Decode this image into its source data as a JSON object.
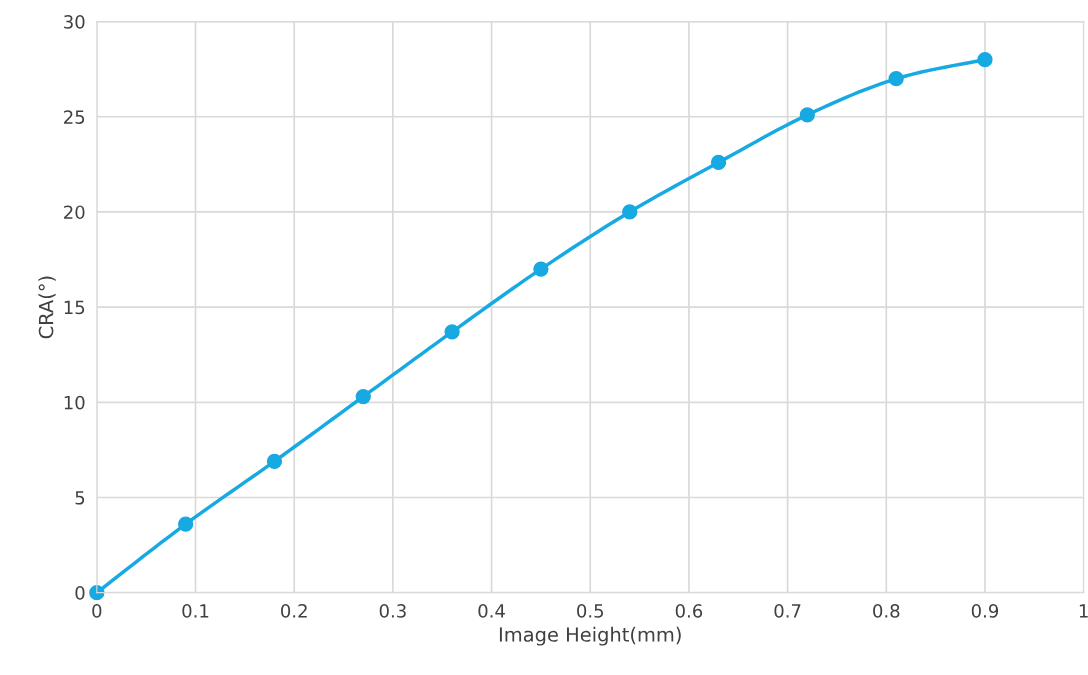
{
  "chart_data": {
    "type": "line",
    "xlabel": "Image Height(mm)",
    "ylabel": "CRA(°)",
    "x": [
      0,
      0.09,
      0.18,
      0.27,
      0.36,
      0.45,
      0.54,
      0.63,
      0.72,
      0.81,
      0.9
    ],
    "series": [
      {
        "color": "#17a9e1",
        "values": [
          0,
          3.6,
          6.9,
          10.3,
          13.7,
          17.0,
          20.0,
          22.6,
          25.1,
          27.0,
          28.0
        ]
      }
    ],
    "xlim": [
      0,
      1
    ],
    "xticks": [
      0,
      0.1,
      0.2,
      0.3,
      0.4,
      0.5,
      0.6,
      0.7,
      0.8,
      0.9,
      1
    ],
    "ylim": [
      0,
      30
    ],
    "yticks": [
      0,
      5,
      10,
      15,
      20,
      25,
      30
    ],
    "grid": true,
    "marker": "circle",
    "line_style": "solid"
  }
}
